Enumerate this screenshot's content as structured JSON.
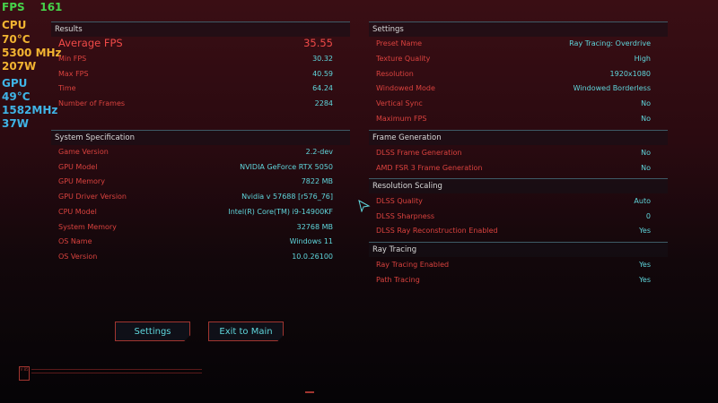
{
  "osd": {
    "fps_label": "FPS",
    "fps_value": "161",
    "cpu_label": "CPU",
    "cpu_temp": "70°C",
    "cpu_clock": "5300 MHz",
    "cpu_power": "207W",
    "gpu_label": "GPU",
    "gpu_temp": "49°C",
    "gpu_clock": "1582MHz",
    "gpu_power": "37W"
  },
  "results": {
    "title": "Results",
    "rows": [
      {
        "label": "Average FPS",
        "value": "35.55"
      },
      {
        "label": "Min FPS",
        "value": "30.32"
      },
      {
        "label": "Max FPS",
        "value": "40.59"
      },
      {
        "label": "Time",
        "value": "64.24"
      },
      {
        "label": "Number of Frames",
        "value": "2284"
      }
    ]
  },
  "system": {
    "title": "System Specification",
    "rows": [
      {
        "label": "Game Version",
        "value": "2.2-dev"
      },
      {
        "label": "GPU Model",
        "value": "NVIDIA GeForce RTX 5050"
      },
      {
        "label": "GPU Memory",
        "value": "7822 MB"
      },
      {
        "label": "GPU Driver Version",
        "value": "Nvidia v 57688 [r576_76]"
      },
      {
        "label": "CPU Model",
        "value": "Intel(R) Core(TM) i9-14900KF"
      },
      {
        "label": "System Memory",
        "value": "32768 MB"
      },
      {
        "label": "OS Name",
        "value": "Windows 11"
      },
      {
        "label": "OS Version",
        "value": "10.0.26100"
      }
    ]
  },
  "settings": {
    "title": "Settings",
    "rows": [
      {
        "label": "Preset Name",
        "value": "Ray Tracing: Overdrive"
      },
      {
        "label": "Texture Quality",
        "value": "High"
      },
      {
        "label": "Resolution",
        "value": "1920x1080"
      },
      {
        "label": "Windowed Mode",
        "value": "Windowed Borderless"
      },
      {
        "label": "Vertical Sync",
        "value": "No"
      },
      {
        "label": "Maximum FPS",
        "value": "No"
      }
    ]
  },
  "frame_generation": {
    "title": "Frame Generation",
    "rows": [
      {
        "label": "DLSS Frame Generation",
        "value": "No"
      },
      {
        "label": "AMD FSR 3 Frame Generation",
        "value": "No"
      }
    ]
  },
  "resolution_scaling": {
    "title": "Resolution Scaling",
    "rows": [
      {
        "label": "DLSS Quality",
        "value": "Auto"
      },
      {
        "label": "DLSS Sharpness",
        "value": "0"
      },
      {
        "label": "DLSS Ray Reconstruction Enabled",
        "value": "Yes"
      }
    ]
  },
  "ray_tracing": {
    "title": "Ray Tracing",
    "rows": [
      {
        "label": "Ray Tracing Enabled",
        "value": "Yes"
      },
      {
        "label": "Path Tracing",
        "value": "Yes"
      }
    ]
  },
  "buttons": {
    "settings": "Settings",
    "exit": "Exit to Main Menu"
  },
  "version_badge": "V 85",
  "colors": {
    "label": "#d9423e",
    "value": "#5fd6dc",
    "fps": "#46d24a",
    "cpu": "#f2b431",
    "gpu": "#3fb4e6"
  }
}
